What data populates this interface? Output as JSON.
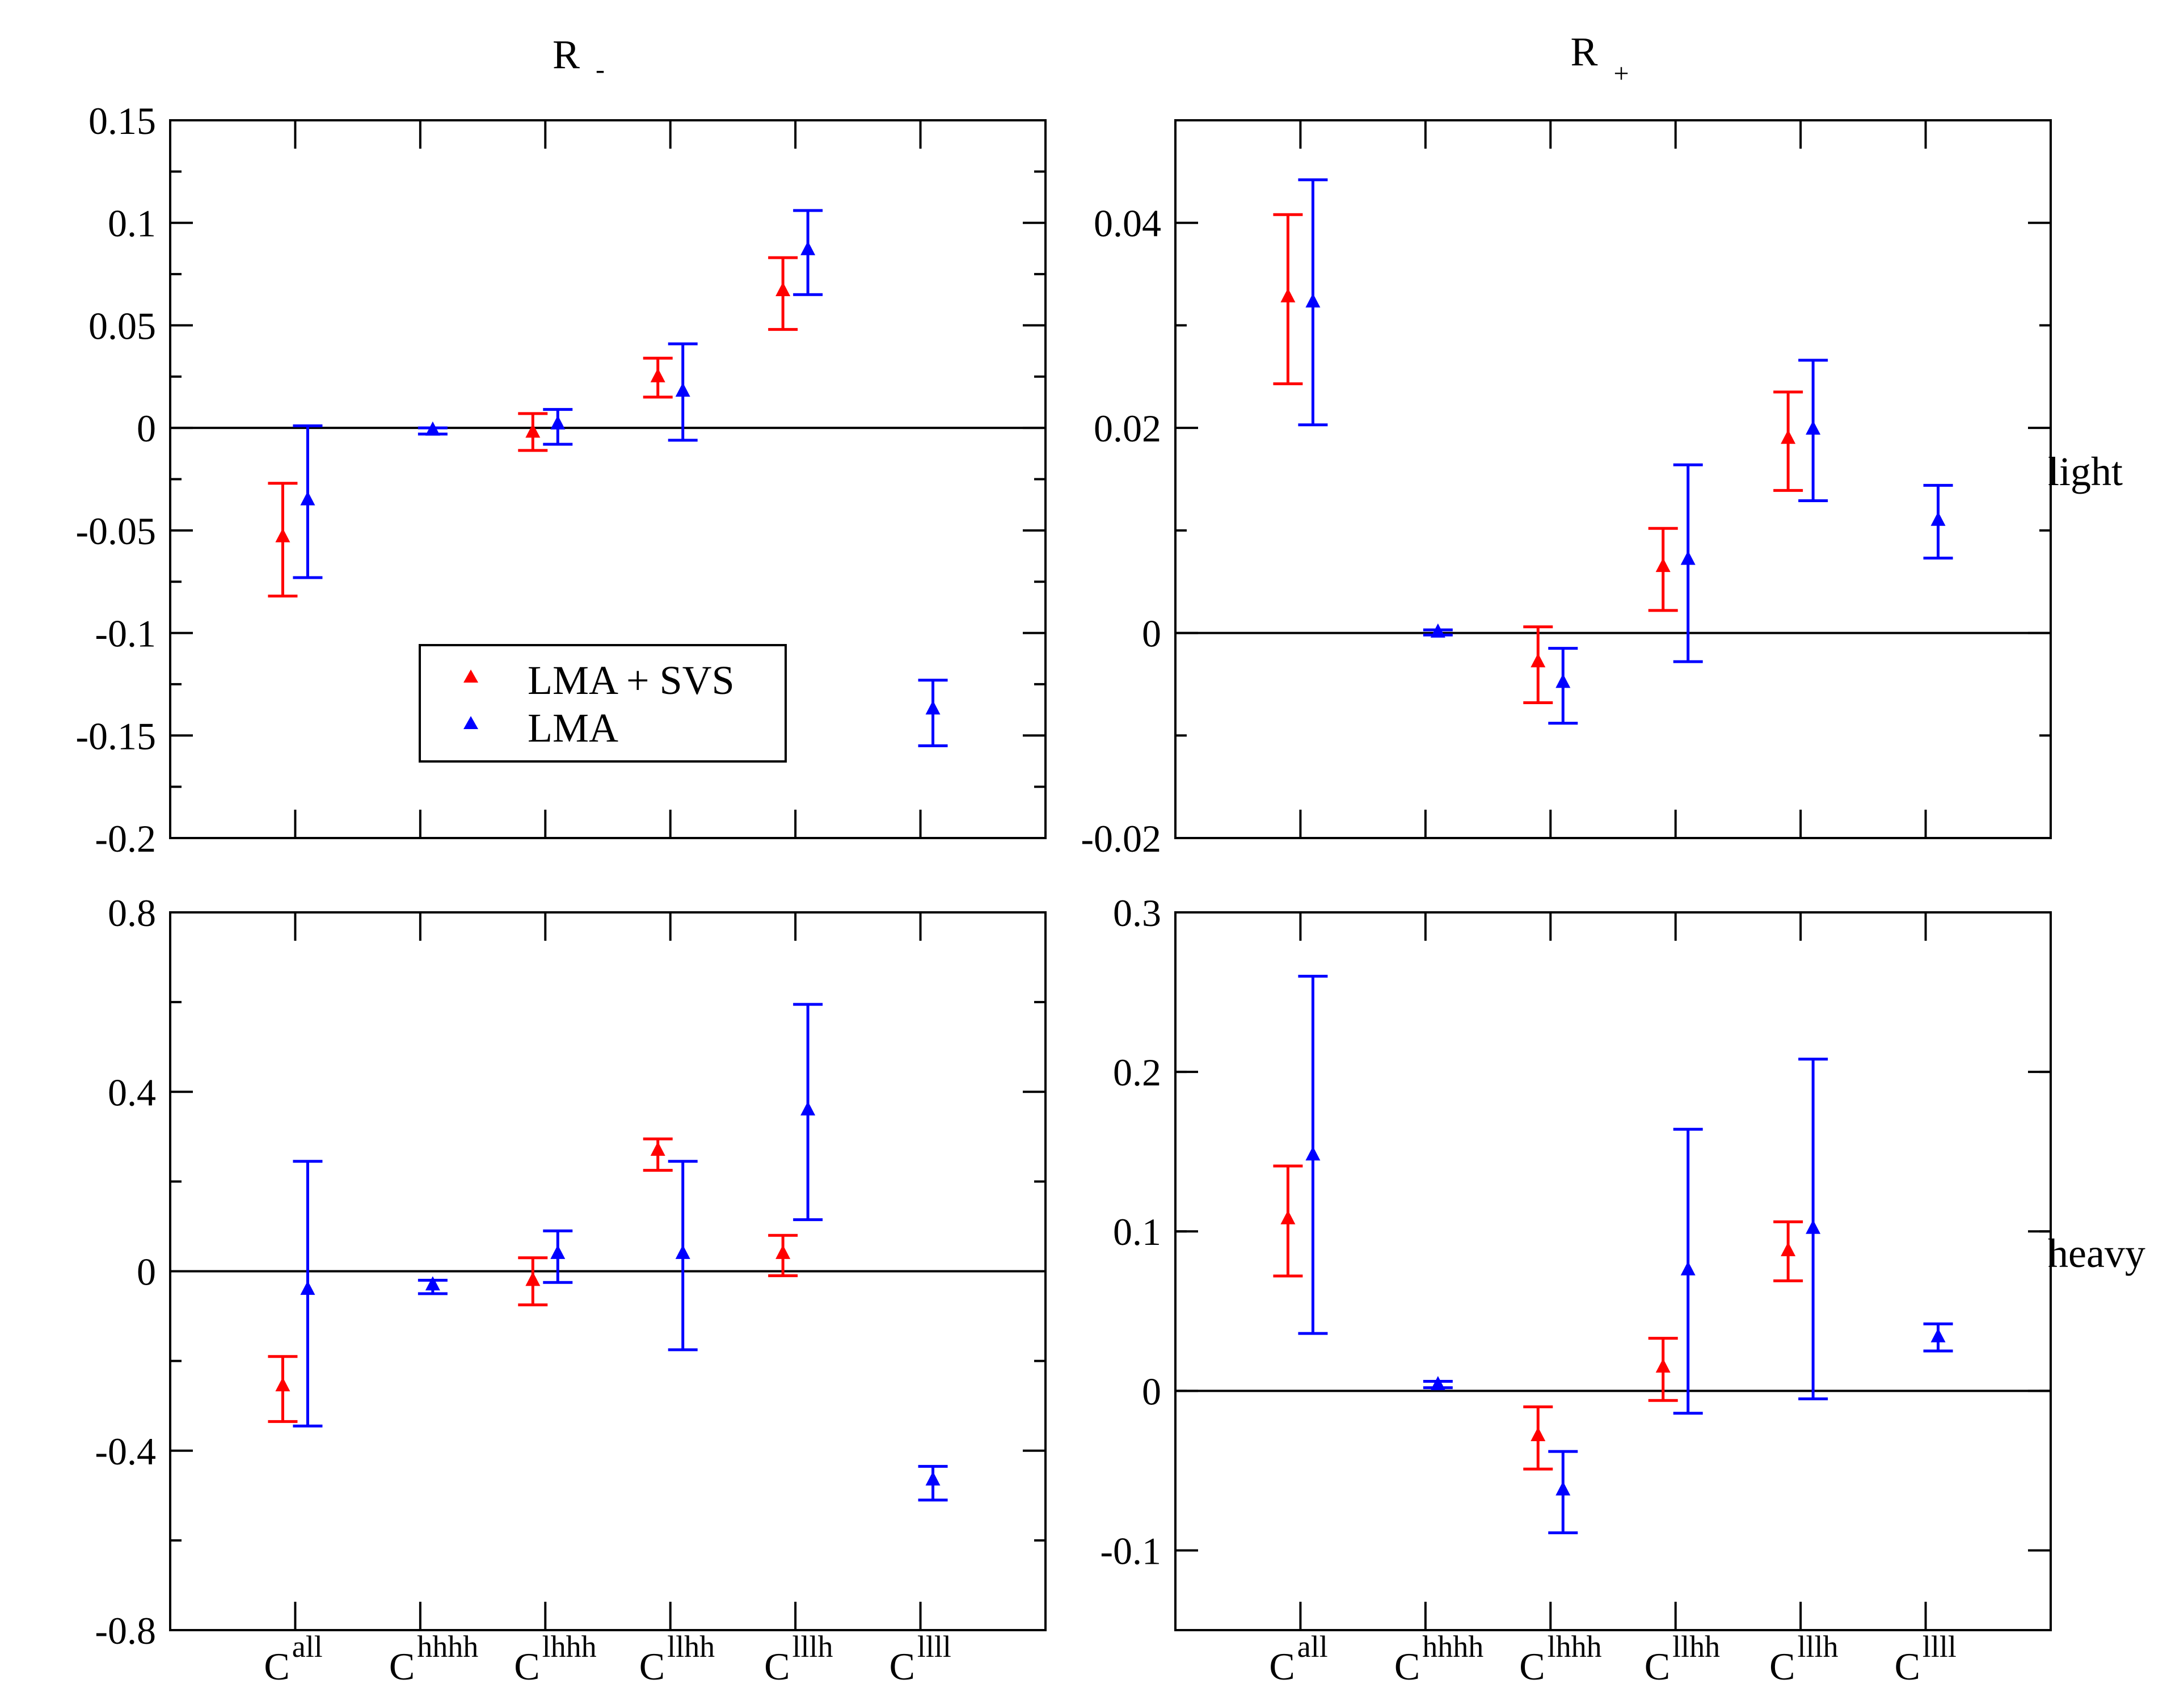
{
  "panel_titles": {
    "left": {
      "base": "R",
      "sub": "-"
    },
    "right": {
      "base": "R",
      "sub": "+"
    }
  },
  "row_labels": [
    "light",
    "heavy"
  ],
  "categories": [
    {
      "base": "C",
      "sup": "all"
    },
    {
      "base": "C",
      "sup": "hhhh"
    },
    {
      "base": "C",
      "sup": "lhhh"
    },
    {
      "base": "C",
      "sup": "llhh"
    },
    {
      "base": "C",
      "sup": "lllh"
    },
    {
      "base": "C",
      "sup": "llll"
    }
  ],
  "legend": {
    "placement": "lower-center of top-left panel",
    "entries": [
      {
        "label": "LMA + SVS",
        "color": "#ff0000"
      },
      {
        "label": "LMA",
        "color": "#0000ff"
      }
    ]
  },
  "series_colors": {
    "LMA + SVS": "#ff0000",
    "LMA": "#0000ff"
  },
  "chart_data": [
    {
      "type": "scatter",
      "panel": "top-left",
      "column": "R_-",
      "row": "light",
      "ylim": [
        -0.2,
        0.15
      ],
      "yticks": [
        "0.15",
        "0.1",
        "0.05",
        "0",
        "-0.05",
        "-0.1",
        "-0.15",
        "-0.2"
      ],
      "ytick_values": [
        0.15,
        0.1,
        0.05,
        0,
        -0.05,
        -0.1,
        -0.15,
        -0.2
      ],
      "zero_line": true,
      "series": [
        {
          "name": "LMA + SVS",
          "points": [
            {
              "x": "Call",
              "y": -0.053,
              "lo": -0.082,
              "hi": -0.027
            },
            {
              "x": "Clhhh",
              "y": -0.002,
              "lo": -0.011,
              "hi": 0.007
            },
            {
              "x": "Cllhh",
              "y": 0.025,
              "lo": 0.015,
              "hi": 0.034
            },
            {
              "x": "Clllh",
              "y": 0.067,
              "lo": 0.048,
              "hi": 0.083
            }
          ]
        },
        {
          "name": "LMA",
          "points": [
            {
              "x": "Call",
              "y": -0.035,
              "lo": -0.073,
              "hi": 0.001
            },
            {
              "x": "Chhhh",
              "y": -0.001,
              "lo": -0.003,
              "hi": 0.0
            },
            {
              "x": "Clhhh",
              "y": 0.002,
              "lo": -0.008,
              "hi": 0.009
            },
            {
              "x": "Cllhh",
              "y": 0.018,
              "lo": -0.006,
              "hi": 0.041
            },
            {
              "x": "Clllh",
              "y": 0.087,
              "lo": 0.065,
              "hi": 0.106
            },
            {
              "x": "Cllll",
              "y": -0.137,
              "lo": -0.155,
              "hi": -0.123
            }
          ]
        }
      ]
    },
    {
      "type": "scatter",
      "panel": "top-right",
      "column": "R_+",
      "row": "light",
      "ylim": [
        -0.02,
        0.05
      ],
      "yticks": [
        "0.04",
        "0.02",
        "0",
        "-0.02"
      ],
      "ytick_values": [
        0.04,
        0.02,
        0,
        -0.02
      ],
      "zero_line": true,
      "series": [
        {
          "name": "LMA + SVS",
          "points": [
            {
              "x": "Call",
              "y": 0.0328,
              "lo": 0.0243,
              "hi": 0.0408
            },
            {
              "x": "Clhhh",
              "y": -0.0028,
              "lo": -0.0068,
              "hi": 0.0006
            },
            {
              "x": "Cllhh",
              "y": 0.0065,
              "lo": 0.0022,
              "hi": 0.0102
            },
            {
              "x": "Clllh",
              "y": 0.019,
              "lo": 0.0139,
              "hi": 0.0235
            }
          ]
        },
        {
          "name": "LMA",
          "points": [
            {
              "x": "Call",
              "y": 0.0323,
              "lo": 0.0203,
              "hi": 0.0442
            },
            {
              "x": "Chhhh",
              "y": 0.0001,
              "lo": -0.0002,
              "hi": 0.0003
            },
            {
              "x": "Clhhh",
              "y": -0.0048,
              "lo": -0.0088,
              "hi": -0.0015
            },
            {
              "x": "Cllhh",
              "y": 0.0072,
              "lo": -0.0028,
              "hi": 0.0164
            },
            {
              "x": "Clllh",
              "y": 0.0199,
              "lo": 0.0129,
              "hi": 0.0266
            },
            {
              "x": "Cllll",
              "y": 0.011,
              "lo": 0.0073,
              "hi": 0.0144
            }
          ]
        }
      ]
    },
    {
      "type": "scatter",
      "panel": "bottom-left",
      "column": "R_-",
      "row": "heavy",
      "ylim": [
        -0.8,
        0.8
      ],
      "yticks": [
        "0.8",
        "0.4",
        "0",
        "-0.4",
        "-0.8"
      ],
      "ytick_values": [
        0.8,
        0.4,
        0,
        -0.4,
        -0.8
      ],
      "zero_line": true,
      "series": [
        {
          "name": "LMA + SVS",
          "points": [
            {
              "x": "Call",
              "y": -0.255,
              "lo": -0.335,
              "hi": -0.19
            },
            {
              "x": "Clhhh",
              "y": -0.02,
              "lo": -0.075,
              "hi": 0.03
            },
            {
              "x": "Cllhh",
              "y": 0.27,
              "lo": 0.225,
              "hi": 0.295
            },
            {
              "x": "Clllh",
              "y": 0.04,
              "lo": -0.01,
              "hi": 0.08
            }
          ]
        },
        {
          "name": "LMA",
          "points": [
            {
              "x": "Call",
              "y": -0.04,
              "lo": -0.345,
              "hi": 0.245
            },
            {
              "x": "Chhhh",
              "y": -0.03,
              "lo": -0.05,
              "hi": -0.02
            },
            {
              "x": "Clhhh",
              "y": 0.04,
              "lo": -0.025,
              "hi": 0.09
            },
            {
              "x": "Cllhh",
              "y": 0.04,
              "lo": -0.175,
              "hi": 0.245
            },
            {
              "x": "Clllh",
              "y": 0.36,
              "lo": 0.115,
              "hi": 0.595
            },
            {
              "x": "Cllll",
              "y": -0.465,
              "lo": -0.51,
              "hi": -0.435
            }
          ]
        }
      ]
    },
    {
      "type": "scatter",
      "panel": "bottom-right",
      "column": "R_+",
      "row": "heavy",
      "ylim": [
        -0.15,
        0.3
      ],
      "yticks": [
        "0.3",
        "0.2",
        "0.1",
        "0",
        "-0.1"
      ],
      "ytick_values": [
        0.3,
        0.2,
        0.1,
        0,
        -0.1
      ],
      "zero_line": true,
      "series": [
        {
          "name": "LMA + SVS",
          "points": [
            {
              "x": "Call",
              "y": 0.108,
              "lo": 0.072,
              "hi": 0.141
            },
            {
              "x": "Clhhh",
              "y": -0.028,
              "lo": -0.049,
              "hi": -0.01
            },
            {
              "x": "Cllhh",
              "y": 0.015,
              "lo": -0.006,
              "hi": 0.033
            },
            {
              "x": "Clllh",
              "y": 0.088,
              "lo": 0.069,
              "hi": 0.106
            }
          ]
        },
        {
          "name": "LMA",
          "points": [
            {
              "x": "Call",
              "y": 0.148,
              "lo": 0.036,
              "hi": 0.26
            },
            {
              "x": "Chhhh",
              "y": 0.004,
              "lo": 0.002,
              "hi": 0.006
            },
            {
              "x": "Clhhh",
              "y": -0.062,
              "lo": -0.089,
              "hi": -0.038
            },
            {
              "x": "Cllhh",
              "y": 0.076,
              "lo": -0.014,
              "hi": 0.164
            },
            {
              "x": "Clllh",
              "y": 0.102,
              "lo": -0.005,
              "hi": 0.208
            },
            {
              "x": "Cllll",
              "y": 0.034,
              "lo": 0.025,
              "hi": 0.042
            }
          ]
        }
      ]
    }
  ]
}
